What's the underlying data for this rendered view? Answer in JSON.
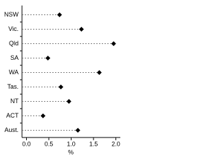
{
  "chart_data": {
    "type": "dot",
    "categories": [
      "NSW",
      "Vic.",
      "Qld",
      "SA",
      "WA",
      "Tas.",
      "NT",
      "ACT",
      "Aust."
    ],
    "values": [
      0.74,
      1.23,
      1.95,
      0.48,
      1.63,
      0.77,
      0.95,
      0.37,
      1.15
    ],
    "color": "#000000",
    "x_label": "%",
    "xlim": [
      -0.1,
      2.1
    ],
    "xticks": [
      {
        "value": 0,
        "label": "0.0"
      },
      0.5,
      {
        "value": 1,
        "label": "1.0"
      },
      1.5,
      {
        "value": 2,
        "label": "2.0"
      }
    ]
  }
}
